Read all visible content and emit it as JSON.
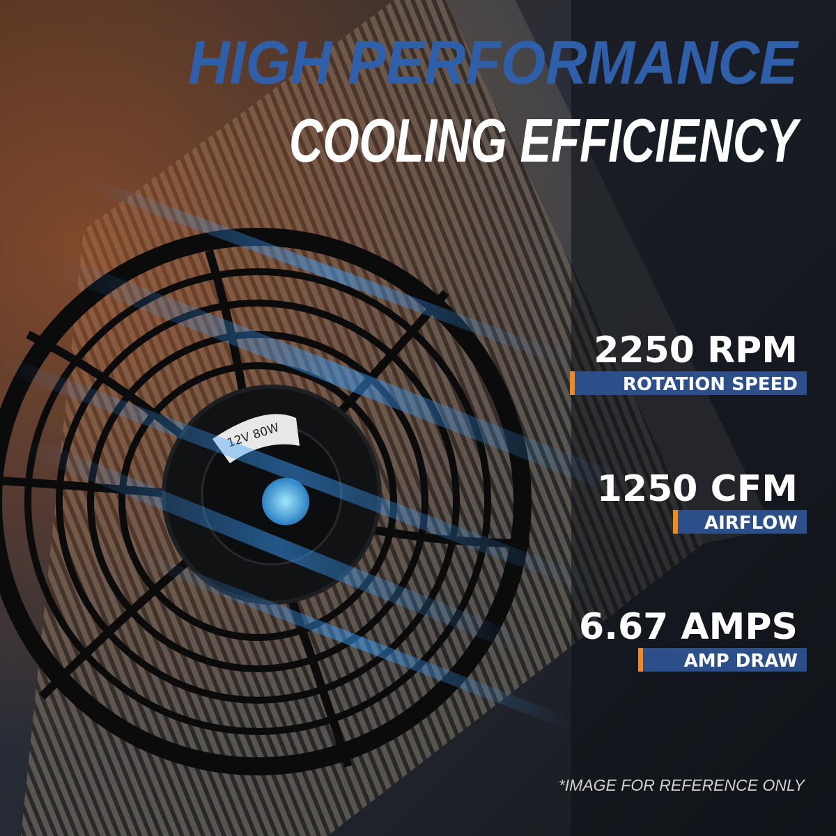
{
  "headline": {
    "line1": "HIGH PERFORMANCE",
    "line2": "COOLING EFFICIENCY"
  },
  "fan_label": "12V 80W",
  "specs": [
    {
      "value": "2250 RPM",
      "label": "ROTATION SPEED"
    },
    {
      "value": "1250 CFM",
      "label": "AIRFLOW"
    },
    {
      "value": "6.67 AMPS",
      "label": "AMP DRAW"
    }
  ],
  "disclaimer": "*IMAGE FOR REFERENCE ONLY"
}
